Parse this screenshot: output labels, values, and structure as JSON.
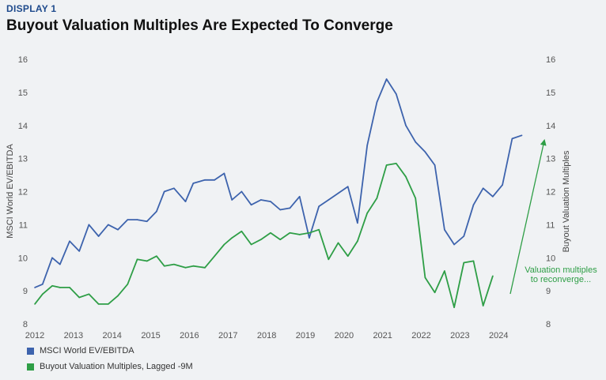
{
  "header": {
    "kicker": "DISPLAY 1",
    "title": "Buyout Valuation Multiples Are Expected To Converge"
  },
  "chart_data": {
    "type": "line",
    "title": "Buyout Valuation Multiples Are Expected To Converge",
    "ylabel_left": "MSCI World EV/EBITDA",
    "ylabel_right": "Buyout Valuation Multiples",
    "ylim": [
      8,
      16
    ],
    "yticks": [
      8,
      9,
      10,
      11,
      12,
      13,
      14,
      15,
      16
    ],
    "xlim": [
      2012,
      2025.1
    ],
    "xticks": [
      2012,
      2013,
      2014,
      2015,
      2016,
      2017,
      2018,
      2019,
      2020,
      2021,
      2022,
      2023,
      2024
    ],
    "grid": false,
    "legend_position": "bottom-left",
    "series": [
      {
        "name": "MSCI World EV/EBITDA",
        "color": "#3d63ad",
        "x": [
          2012.0,
          2012.2,
          2012.45,
          2012.65,
          2012.9,
          2013.15,
          2013.4,
          2013.65,
          2013.9,
          2014.15,
          2014.4,
          2014.65,
          2014.9,
          2015.15,
          2015.35,
          2015.6,
          2015.9,
          2016.1,
          2016.4,
          2016.65,
          2016.9,
          2017.1,
          2017.35,
          2017.6,
          2017.85,
          2018.1,
          2018.35,
          2018.6,
          2018.85,
          2019.1,
          2019.35,
          2019.6,
          2019.85,
          2020.1,
          2020.35,
          2020.6,
          2020.85,
          2021.1,
          2021.35,
          2021.6,
          2021.85,
          2022.1,
          2022.35,
          2022.6,
          2022.85,
          2023.1,
          2023.35,
          2023.6,
          2023.85,
          2024.1,
          2024.35,
          2024.6
        ],
        "values": [
          9.1,
          9.2,
          10.0,
          9.8,
          10.5,
          10.2,
          11.0,
          10.65,
          11.0,
          10.85,
          11.15,
          11.15,
          11.1,
          11.4,
          12.0,
          12.1,
          11.7,
          12.25,
          12.35,
          12.35,
          12.55,
          11.75,
          12.0,
          11.6,
          11.75,
          11.7,
          11.45,
          11.5,
          11.85,
          10.6,
          11.55,
          11.75,
          11.95,
          12.15,
          11.05,
          13.4,
          14.7,
          15.4,
          14.95,
          14.0,
          13.5,
          13.2,
          12.8,
          10.85,
          10.4,
          10.65,
          11.6,
          12.1,
          11.85,
          12.2,
          13.6,
          13.7
        ]
      },
      {
        "name": "Buyout Valuation Multiples, Lagged -9M",
        "color": "#2e9e46",
        "x": [
          2012.0,
          2012.2,
          2012.45,
          2012.65,
          2012.9,
          2013.15,
          2013.4,
          2013.65,
          2013.9,
          2014.15,
          2014.4,
          2014.65,
          2014.9,
          2015.15,
          2015.35,
          2015.6,
          2015.9,
          2016.1,
          2016.4,
          2016.65,
          2016.9,
          2017.1,
          2017.35,
          2017.6,
          2017.85,
          2018.1,
          2018.35,
          2018.6,
          2018.85,
          2019.1,
          2019.35,
          2019.6,
          2019.85,
          2020.1,
          2020.35,
          2020.6,
          2020.85,
          2021.1,
          2021.35,
          2021.6,
          2021.85,
          2022.1,
          2022.35,
          2022.6,
          2022.85,
          2023.1,
          2023.35,
          2023.6,
          2023.85
        ],
        "values": [
          8.6,
          8.9,
          9.15,
          9.1,
          9.1,
          8.8,
          8.9,
          8.6,
          8.6,
          8.85,
          9.2,
          9.95,
          9.9,
          10.05,
          9.75,
          9.8,
          9.7,
          9.75,
          9.7,
          10.05,
          10.4,
          10.6,
          10.8,
          10.4,
          10.55,
          10.75,
          10.55,
          10.75,
          10.7,
          10.75,
          10.85,
          9.95,
          10.45,
          10.05,
          10.5,
          11.35,
          11.8,
          12.8,
          12.85,
          12.45,
          11.8,
          9.4,
          8.95,
          9.6,
          8.5,
          9.85,
          9.9,
          8.55,
          9.45
        ]
      }
    ],
    "annotation": {
      "line1": "Valuation multiples",
      "line2": "to reconverge..."
    }
  }
}
